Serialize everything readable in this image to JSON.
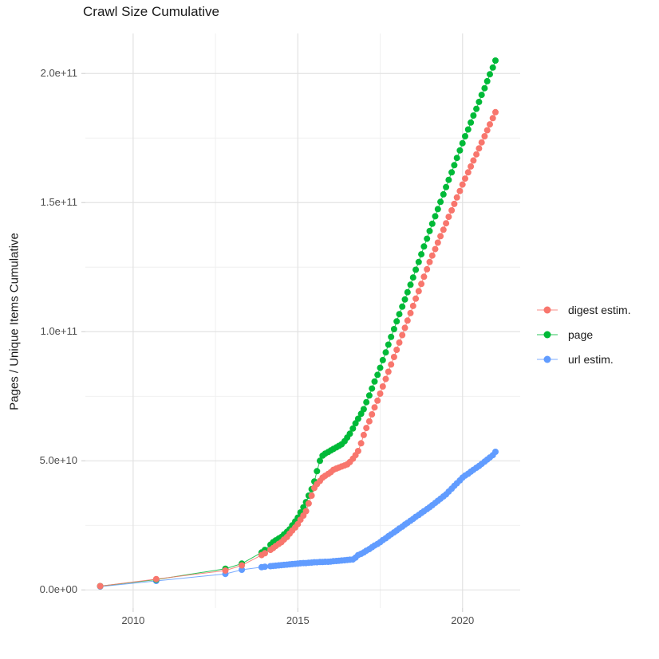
{
  "page": {
    "background": "#ffffff"
  },
  "chart_data": {
    "type": "scatter",
    "title": "Crawl Size Cumulative",
    "xlabel": "",
    "ylabel": "Pages / Unique Items Cumulative",
    "legend_position": "right",
    "grid": "major and minor gridlines, light gray on white panel",
    "x_tick_values": [
      2010,
      2015,
      2020
    ],
    "x_tick_labels": [
      "2010",
      "2015",
      "2020"
    ],
    "y_tick_values": [
      0,
      5,
      10,
      15,
      20
    ],
    "y_tick_labels": [
      "0.0e+00",
      "5.0e+10",
      "1.0e+11",
      "1.5e+11",
      "2.0e+11"
    ],
    "x_minor": [
      2012.5,
      2017.5
    ],
    "y_minor": [
      2.5,
      7.5,
      12.5,
      17.5
    ],
    "xlim": [
      2008.55,
      2021.75
    ],
    "ylim": [
      -0.7,
      21.55
    ],
    "value_unit_multiplier": 10000000000.0,
    "colors": {
      "digest": "#F8766D",
      "page": "#00BA38",
      "url": "#619CFF",
      "grid_major": "#e2e2e2",
      "grid_minor": "#efefef",
      "axis_text": "#4d4d4d"
    },
    "series": [
      {
        "name": "digest estim.",
        "color": "#F8766D",
        "points": [
          [
            2009.0,
            0.15
          ],
          [
            2010.7,
            0.42
          ],
          [
            2012.8,
            0.75
          ],
          [
            2013.3,
            0.95
          ],
          [
            2013.9,
            1.35
          ],
          [
            2014.0,
            1.42
          ],
          [
            2014.17,
            1.55
          ],
          [
            2014.25,
            1.62
          ],
          [
            2014.33,
            1.7
          ],
          [
            2014.42,
            1.78
          ],
          [
            2014.5,
            1.85
          ],
          [
            2014.58,
            1.95
          ],
          [
            2014.67,
            2.05
          ],
          [
            2014.75,
            2.18
          ],
          [
            2014.83,
            2.3
          ],
          [
            2014.92,
            2.42
          ],
          [
            2015.0,
            2.55
          ],
          [
            2015.08,
            2.72
          ],
          [
            2015.17,
            2.88
          ],
          [
            2015.25,
            3.05
          ],
          [
            2015.33,
            3.35
          ],
          [
            2015.42,
            3.65
          ],
          [
            2015.5,
            3.95
          ],
          [
            2015.58,
            4.1
          ],
          [
            2015.67,
            4.22
          ],
          [
            2015.75,
            4.35
          ],
          [
            2015.83,
            4.42
          ],
          [
            2015.92,
            4.49
          ],
          [
            2016.0,
            4.56
          ],
          [
            2016.08,
            4.65
          ],
          [
            2016.17,
            4.7
          ],
          [
            2016.25,
            4.74
          ],
          [
            2016.33,
            4.78
          ],
          [
            2016.42,
            4.82
          ],
          [
            2016.5,
            4.86
          ],
          [
            2016.58,
            4.95
          ],
          [
            2016.67,
            5.08
          ],
          [
            2016.75,
            5.22
          ],
          [
            2016.83,
            5.38
          ],
          [
            2016.92,
            5.68
          ],
          [
            2017.0,
            6.0
          ],
          [
            2017.08,
            6.27
          ],
          [
            2017.17,
            6.53
          ],
          [
            2017.25,
            6.8
          ],
          [
            2017.33,
            7.07
          ],
          [
            2017.42,
            7.33
          ],
          [
            2017.5,
            7.6
          ],
          [
            2017.58,
            7.88
          ],
          [
            2017.67,
            8.17
          ],
          [
            2017.75,
            8.45
          ],
          [
            2017.83,
            8.73
          ],
          [
            2017.92,
            9.02
          ],
          [
            2018.0,
            9.3
          ],
          [
            2018.08,
            9.58
          ],
          [
            2018.17,
            9.87
          ],
          [
            2018.25,
            10.15
          ],
          [
            2018.33,
            10.43
          ],
          [
            2018.42,
            10.72
          ],
          [
            2018.5,
            11.0
          ],
          [
            2018.58,
            11.28
          ],
          [
            2018.67,
            11.57
          ],
          [
            2018.75,
            11.85
          ],
          [
            2018.83,
            12.13
          ],
          [
            2018.92,
            12.42
          ],
          [
            2019.0,
            12.7
          ],
          [
            2019.08,
            12.95
          ],
          [
            2019.17,
            13.2
          ],
          [
            2019.25,
            13.45
          ],
          [
            2019.33,
            13.7
          ],
          [
            2019.42,
            13.95
          ],
          [
            2019.5,
            14.2
          ],
          [
            2019.58,
            14.45
          ],
          [
            2019.67,
            14.7
          ],
          [
            2019.75,
            14.95
          ],
          [
            2019.83,
            15.2
          ],
          [
            2019.92,
            15.45
          ],
          [
            2020.0,
            15.7
          ],
          [
            2020.08,
            15.93
          ],
          [
            2020.17,
            16.17
          ],
          [
            2020.25,
            16.4
          ],
          [
            2020.33,
            16.63
          ],
          [
            2020.42,
            16.87
          ],
          [
            2020.5,
            17.1
          ],
          [
            2020.58,
            17.33
          ],
          [
            2020.67,
            17.57
          ],
          [
            2020.75,
            17.8
          ],
          [
            2020.83,
            18.03
          ],
          [
            2020.92,
            18.27
          ],
          [
            2021.0,
            18.5
          ]
        ]
      },
      {
        "name": "page",
        "color": "#00BA38",
        "points": [
          [
            2009.0,
            0.15
          ],
          [
            2010.7,
            0.4
          ],
          [
            2012.8,
            0.82
          ],
          [
            2013.3,
            1.02
          ],
          [
            2013.9,
            1.45
          ],
          [
            2014.0,
            1.55
          ],
          [
            2014.17,
            1.75
          ],
          [
            2014.25,
            1.85
          ],
          [
            2014.33,
            1.92
          ],
          [
            2014.42,
            1.99
          ],
          [
            2014.5,
            2.05
          ],
          [
            2014.58,
            2.15
          ],
          [
            2014.67,
            2.25
          ],
          [
            2014.75,
            2.35
          ],
          [
            2014.83,
            2.5
          ],
          [
            2014.92,
            2.65
          ],
          [
            2015.0,
            2.8
          ],
          [
            2015.08,
            3.0
          ],
          [
            2015.17,
            3.2
          ],
          [
            2015.25,
            3.4
          ],
          [
            2015.33,
            3.65
          ],
          [
            2015.42,
            3.9
          ],
          [
            2015.5,
            4.2
          ],
          [
            2015.58,
            4.6
          ],
          [
            2015.67,
            5.0
          ],
          [
            2015.75,
            5.2
          ],
          [
            2015.83,
            5.28
          ],
          [
            2015.92,
            5.34
          ],
          [
            2016.0,
            5.4
          ],
          [
            2016.08,
            5.46
          ],
          [
            2016.17,
            5.52
          ],
          [
            2016.25,
            5.58
          ],
          [
            2016.33,
            5.64
          ],
          [
            2016.42,
            5.76
          ],
          [
            2016.5,
            5.9
          ],
          [
            2016.58,
            6.05
          ],
          [
            2016.67,
            6.25
          ],
          [
            2016.75,
            6.45
          ],
          [
            2016.83,
            6.63
          ],
          [
            2016.92,
            6.82
          ],
          [
            2017.0,
            7.0
          ],
          [
            2017.08,
            7.27
          ],
          [
            2017.17,
            7.53
          ],
          [
            2017.25,
            7.8
          ],
          [
            2017.33,
            8.07
          ],
          [
            2017.42,
            8.33
          ],
          [
            2017.5,
            8.6
          ],
          [
            2017.58,
            8.9
          ],
          [
            2017.67,
            9.2
          ],
          [
            2017.75,
            9.5
          ],
          [
            2017.83,
            9.8
          ],
          [
            2017.92,
            10.1
          ],
          [
            2018.0,
            10.4
          ],
          [
            2018.08,
            10.68
          ],
          [
            2018.17,
            10.97
          ],
          [
            2018.25,
            11.25
          ],
          [
            2018.33,
            11.53
          ],
          [
            2018.42,
            11.82
          ],
          [
            2018.5,
            12.1
          ],
          [
            2018.58,
            12.4
          ],
          [
            2018.67,
            12.7
          ],
          [
            2018.75,
            13.0
          ],
          [
            2018.83,
            13.3
          ],
          [
            2018.92,
            13.6
          ],
          [
            2019.0,
            13.9
          ],
          [
            2019.08,
            14.18
          ],
          [
            2019.17,
            14.47
          ],
          [
            2019.25,
            14.75
          ],
          [
            2019.33,
            15.03
          ],
          [
            2019.42,
            15.32
          ],
          [
            2019.5,
            15.6
          ],
          [
            2019.58,
            15.88
          ],
          [
            2019.67,
            16.17
          ],
          [
            2019.75,
            16.45
          ],
          [
            2019.83,
            16.73
          ],
          [
            2019.92,
            17.02
          ],
          [
            2020.0,
            17.3
          ],
          [
            2020.08,
            17.57
          ],
          [
            2020.17,
            17.83
          ],
          [
            2020.25,
            18.1
          ],
          [
            2020.33,
            18.37
          ],
          [
            2020.42,
            18.63
          ],
          [
            2020.5,
            18.9
          ],
          [
            2020.58,
            19.17
          ],
          [
            2020.67,
            19.43
          ],
          [
            2020.75,
            19.7
          ],
          [
            2020.83,
            19.97
          ],
          [
            2020.92,
            20.23
          ],
          [
            2021.0,
            20.5
          ]
        ]
      },
      {
        "name": "url estim.",
        "color": "#619CFF",
        "points": [
          [
            2009.0,
            0.13
          ],
          [
            2010.7,
            0.35
          ],
          [
            2012.8,
            0.62
          ],
          [
            2013.3,
            0.78
          ],
          [
            2013.9,
            0.88
          ],
          [
            2014.0,
            0.9
          ],
          [
            2014.17,
            0.92
          ],
          [
            2014.25,
            0.93
          ],
          [
            2014.33,
            0.94
          ],
          [
            2014.42,
            0.95
          ],
          [
            2014.5,
            0.96
          ],
          [
            2014.58,
            0.97
          ],
          [
            2014.67,
            0.98
          ],
          [
            2014.75,
            0.99
          ],
          [
            2014.83,
            1.0
          ],
          [
            2014.92,
            1.01
          ],
          [
            2015.0,
            1.02
          ],
          [
            2015.08,
            1.03
          ],
          [
            2015.17,
            1.04
          ],
          [
            2015.25,
            1.04
          ],
          [
            2015.33,
            1.05
          ],
          [
            2015.42,
            1.06
          ],
          [
            2015.5,
            1.07
          ],
          [
            2015.58,
            1.07
          ],
          [
            2015.67,
            1.08
          ],
          [
            2015.75,
            1.08
          ],
          [
            2015.83,
            1.09
          ],
          [
            2015.92,
            1.09
          ],
          [
            2016.0,
            1.1
          ],
          [
            2016.08,
            1.11
          ],
          [
            2016.17,
            1.12
          ],
          [
            2016.25,
            1.13
          ],
          [
            2016.33,
            1.14
          ],
          [
            2016.42,
            1.15
          ],
          [
            2016.5,
            1.16
          ],
          [
            2016.58,
            1.17
          ],
          [
            2016.67,
            1.18
          ],
          [
            2016.75,
            1.25
          ],
          [
            2016.83,
            1.35
          ],
          [
            2016.92,
            1.4
          ],
          [
            2017.0,
            1.45
          ],
          [
            2017.08,
            1.52
          ],
          [
            2017.17,
            1.58
          ],
          [
            2017.25,
            1.65
          ],
          [
            2017.33,
            1.72
          ],
          [
            2017.42,
            1.78
          ],
          [
            2017.5,
            1.85
          ],
          [
            2017.58,
            1.93
          ],
          [
            2017.67,
            2.0
          ],
          [
            2017.75,
            2.08
          ],
          [
            2017.83,
            2.15
          ],
          [
            2017.92,
            2.23
          ],
          [
            2018.0,
            2.3
          ],
          [
            2018.08,
            2.38
          ],
          [
            2018.17,
            2.45
          ],
          [
            2018.25,
            2.53
          ],
          [
            2018.33,
            2.6
          ],
          [
            2018.42,
            2.68
          ],
          [
            2018.5,
            2.75
          ],
          [
            2018.58,
            2.83
          ],
          [
            2018.67,
            2.9
          ],
          [
            2018.75,
            2.98
          ],
          [
            2018.83,
            3.05
          ],
          [
            2018.92,
            3.13
          ],
          [
            2019.0,
            3.2
          ],
          [
            2019.08,
            3.28
          ],
          [
            2019.17,
            3.37
          ],
          [
            2019.25,
            3.45
          ],
          [
            2019.33,
            3.53
          ],
          [
            2019.42,
            3.62
          ],
          [
            2019.5,
            3.7
          ],
          [
            2019.58,
            3.81
          ],
          [
            2019.67,
            3.92
          ],
          [
            2019.75,
            4.03
          ],
          [
            2019.83,
            4.13
          ],
          [
            2019.92,
            4.24
          ],
          [
            2020.0,
            4.35
          ],
          [
            2020.08,
            4.43
          ],
          [
            2020.17,
            4.5
          ],
          [
            2020.25,
            4.58
          ],
          [
            2020.33,
            4.65
          ],
          [
            2020.42,
            4.73
          ],
          [
            2020.5,
            4.8
          ],
          [
            2020.58,
            4.88
          ],
          [
            2020.67,
            4.97
          ],
          [
            2020.75,
            5.05
          ],
          [
            2020.83,
            5.13
          ],
          [
            2020.92,
            5.22
          ],
          [
            2021.0,
            5.35
          ]
        ]
      }
    ]
  }
}
